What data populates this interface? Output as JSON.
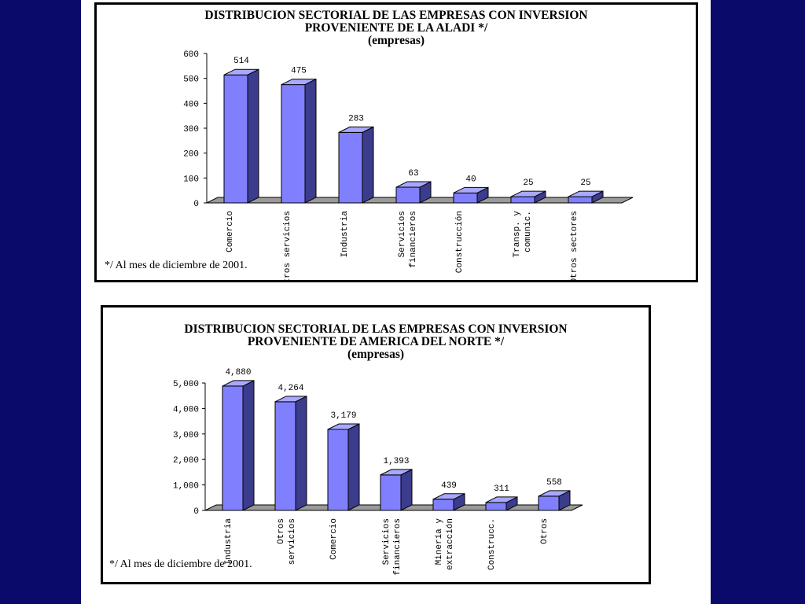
{
  "charts": [
    {
      "title_lines": [
        "DISTRIBUCION SECTORIAL DE LAS EMPRESAS CON INVERSION",
        "PROVENIENTE DE LA ALADI */",
        "(empresas)"
      ],
      "footnote": "*/ Al mes de diciembre de 2001."
    },
    {
      "title_lines": [
        "DISTRIBUCION SECTORIAL DE LAS EMPRESAS CON INVERSION",
        "PROVENIENTE DE AMERICA DEL NORTE */",
        "(empresas)"
      ],
      "footnote": "*/ Al mes de diciembre de 2001."
    }
  ],
  "colors": {
    "background": "#0a0a6b",
    "bar_front": "#8080ff",
    "bar_side": "#3c3c8c",
    "bar_top": "#a8a8ff",
    "floor": "#9a9a9a"
  },
  "chart_data": [
    {
      "type": "bar",
      "title": "DISTRIBUCION SECTORIAL DE LAS EMPRESAS CON INVERSION PROVENIENTE DE LA ALADI */ (empresas)",
      "categories": [
        [
          "Comercio"
        ],
        [
          "Otros servicios"
        ],
        [
          "Industria"
        ],
        [
          "Servicios",
          "financieros"
        ],
        [
          "Construcción"
        ],
        [
          "Transp. y",
          "comunic."
        ],
        [
          "Otros sectores"
        ]
      ],
      "values": [
        514,
        475,
        283,
        63,
        40,
        25,
        25
      ],
      "value_labels": [
        "514",
        "475",
        "283",
        "63",
        "40",
        "25",
        "25"
      ],
      "yticks": [
        "0",
        "100",
        "200",
        "300",
        "400",
        "500",
        "600"
      ],
      "ylim": [
        0,
        600
      ],
      "grid": false,
      "legend": "none"
    },
    {
      "type": "bar",
      "title": "DISTRIBUCION SECTORIAL DE LAS EMPRESAS CON INVERSION PROVENIENTE DE AMERICA DEL NORTE */ (empresas)",
      "categories": [
        [
          "Industria"
        ],
        [
          "Otros",
          "servicios"
        ],
        [
          "Comercio"
        ],
        [
          "Servicios",
          "financieros"
        ],
        [
          "Minería y",
          "extracción"
        ],
        [
          "Construcc."
        ],
        [
          "Otros"
        ]
      ],
      "values": [
        4880,
        4264,
        3179,
        1393,
        439,
        311,
        558
      ],
      "value_labels": [
        "4,880",
        "4,264",
        "3,179",
        "1,393",
        "439",
        "311",
        "558"
      ],
      "yticks": [
        "0",
        "1,000",
        "2,000",
        "3,000",
        "4,000",
        "5,000"
      ],
      "ylim": [
        0,
        5000
      ],
      "grid": false,
      "legend": "none"
    }
  ]
}
